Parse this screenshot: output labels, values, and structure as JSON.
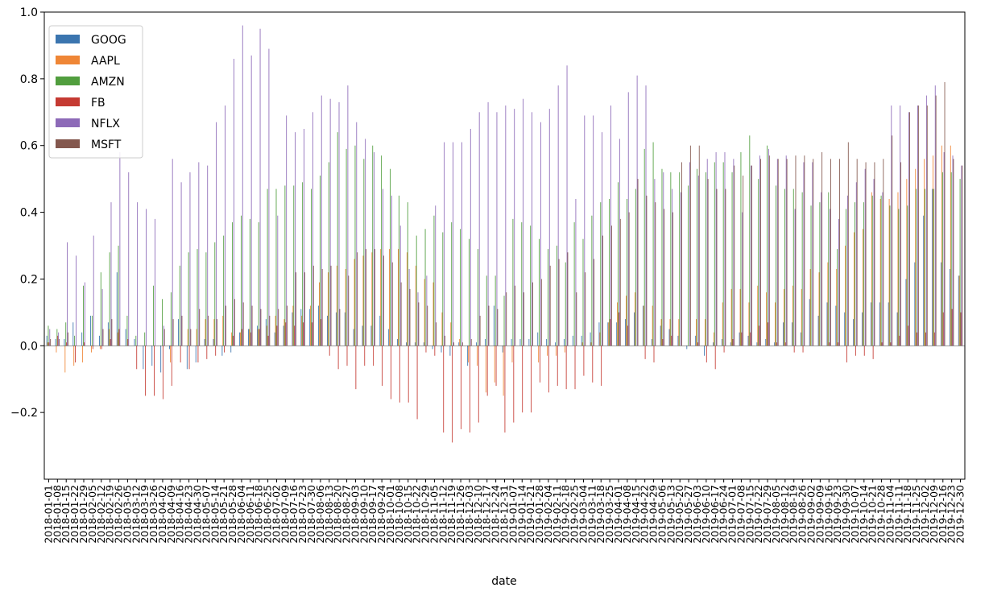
{
  "chart_data": {
    "type": "bar",
    "xlabel": "date",
    "ylabel": "",
    "title": "",
    "ylim": [
      -0.4,
      1.0
    ],
    "yticks": [
      -0.2,
      0.0,
      0.2,
      0.4,
      0.6,
      0.8,
      1.0
    ],
    "ytick_labels": [
      "−0.2",
      "0.0",
      "0.2",
      "0.4",
      "0.6",
      "0.8",
      "1.0"
    ],
    "grid": false,
    "legend_position": "top-left",
    "colors": [
      "#3b75af",
      "#ef8636",
      "#519e3e",
      "#c53a32",
      "#8d6ab8",
      "#84584e"
    ],
    "categories": [
      "2018-01-01",
      "2018-01-08",
      "2018-01-15",
      "2018-01-22",
      "2018-01-29",
      "2018-02-05",
      "2018-02-12",
      "2018-02-19",
      "2018-02-26",
      "2018-03-05",
      "2018-03-12",
      "2018-03-19",
      "2018-03-26",
      "2018-04-02",
      "2018-04-09",
      "2018-04-16",
      "2018-04-23",
      "2018-04-30",
      "2018-05-07",
      "2018-05-14",
      "2018-05-21",
      "2018-05-28",
      "2018-06-04",
      "2018-06-11",
      "2018-06-18",
      "2018-06-25",
      "2018-07-02",
      "2018-07-09",
      "2018-07-16",
      "2018-07-23",
      "2018-07-30",
      "2018-08-06",
      "2018-08-13",
      "2018-08-20",
      "2018-08-27",
      "2018-09-03",
      "2018-09-10",
      "2018-09-17",
      "2018-09-24",
      "2018-10-01",
      "2018-10-08",
      "2018-10-15",
      "2018-10-22",
      "2018-10-29",
      "2018-11-05",
      "2018-11-12",
      "2018-11-19",
      "2018-11-26",
      "2018-12-03",
      "2018-12-10",
      "2018-12-17",
      "2018-12-24",
      "2018-12-31",
      "2019-01-07",
      "2019-01-14",
      "2019-01-21",
      "2019-01-28",
      "2019-02-04",
      "2019-02-11",
      "2019-02-18",
      "2019-02-25",
      "2019-03-04",
      "2019-03-11",
      "2019-03-18",
      "2019-03-25",
      "2019-04-01",
      "2019-04-08",
      "2019-04-15",
      "2019-04-22",
      "2019-04-29",
      "2019-05-06",
      "2019-05-13",
      "2019-05-20",
      "2019-05-27",
      "2019-06-03",
      "2019-06-10",
      "2019-06-17",
      "2019-06-24",
      "2019-07-01",
      "2019-07-08",
      "2019-07-15",
      "2019-07-22",
      "2019-07-29",
      "2019-08-05",
      "2019-08-12",
      "2019-08-19",
      "2019-08-26",
      "2019-09-02",
      "2019-09-09",
      "2019-09-16",
      "2019-09-23",
      "2019-09-30",
      "2019-10-07",
      "2019-10-14",
      "2019-10-21",
      "2019-10-28",
      "2019-11-04",
      "2019-11-11",
      "2019-11-18",
      "2019-11-25",
      "2019-12-02",
      "2019-12-09",
      "2019-12-16",
      "2019-12-23",
      "2019-12-30"
    ],
    "xtick_labels": [
      "2018-01-01",
      "2018-01-08",
      "2018-01-15",
      "2018-01-22",
      "2018-01-29",
      "2018-02-05",
      "2018-02-12",
      "2018-02-19",
      "2018-02-26",
      "2018-03-05",
      "2018-03-12",
      "2018-03-19",
      "2018-03-26",
      "2018-04-02",
      "2018-04-09",
      "2018-04-16",
      "2018-04-23",
      "2018-04-30",
      "2018-05-07",
      "2018-05-14",
      "2018-05-21",
      "2018-05-28",
      "2018-06-04",
      "2018-06-11",
      "2018-06-18",
      "2018-06-25",
      "2018-07-02",
      "2018-07-09",
      "2018-07-16",
      "2018-07-23",
      "2018-07-30",
      "2018-08-06",
      "2018-08-13",
      "2018-08-20",
      "2018-08-27",
      "2018-09-03",
      "2018-09-10",
      "2018-09-17",
      "2018-09-24",
      "2018-10-01",
      "2018-10-08",
      "2018-10-15",
      "2018-10-22",
      "2018-10-29",
      "2018-11-05",
      "2018-11-12",
      "2018-11-19",
      "2018-11-26",
      "2018-12-03",
      "2018-12-10",
      "2018-12-17",
      "2018-12-24",
      "2018-12-31",
      "2019-01-07",
      "2019-01-14",
      "2019-01-21",
      "2019-01-28",
      "2019-02-04",
      "2019-02-11",
      "2019-02-18",
      "2019-02-25",
      "2019-03-04",
      "2019-03-11",
      "2019-03-18",
      "2019-03-25",
      "2019-04-01",
      "2019-04-08",
      "2019-04-15",
      "2019-04-22",
      "2019-04-29",
      "2019-05-06",
      "2019-05-13",
      "2019-05-20",
      "2019-05-27",
      "2019-06-03",
      "2019-06-10",
      "2019-06-17",
      "2019-06-24",
      "2019-07-01",
      "2019-07-08",
      "2019-07-15",
      "2019-07-22",
      "2019-07-29",
      "2019-08-05",
      "2019-08-12",
      "2019-08-19",
      "2019-08-26",
      "2019-09-02",
      "2019-09-09",
      "2019-09-16",
      "2019-09-23",
      "2019-09-30",
      "2019-10-07",
      "2019-10-14",
      "2019-10-21",
      "2019-10-28",
      "2019-11-04",
      "2019-11-11",
      "2019-11-18",
      "2019-11-25",
      "2019-12-02",
      "2019-12-09",
      "2019-12-16",
      "2019-12-23",
      "2019-12-30"
    ],
    "series": [
      {
        "name": "GOOG",
        "values": [
          0.03,
          0.02,
          0.02,
          0.07,
          0.04,
          0.09,
          0.03,
          0.07,
          0.22,
          0.05,
          0.02,
          -0.07,
          -0.06,
          -0.08,
          -0.01,
          0.08,
          -0.07,
          -0.05,
          0.02,
          0.02,
          -0.03,
          -0.02,
          0.04,
          0.05,
          0.06,
          0.08,
          0.04,
          0.06,
          0.1,
          0.11,
          0.11,
          0.12,
          0.09,
          0.1,
          0.1,
          0.05,
          0.06,
          0.06,
          0.09,
          0.05,
          0.02,
          0.01,
          0.01,
          0.01,
          -0.01,
          -0.02,
          -0.03,
          0.01,
          -0.06,
          0.01,
          0.02,
          0.12,
          -0.02,
          0.02,
          0.02,
          0.02,
          0.04,
          0.02,
          0.01,
          0.02,
          0.03,
          0.03,
          0.04,
          0.07,
          0.07,
          0.07,
          0.08,
          0.1,
          0.12,
          0.02,
          0.06,
          0.05,
          0.03,
          -0.01,
          0.03,
          -0.03,
          0.01,
          0.02,
          0.01,
          0.04,
          0.03,
          0.01,
          0.02,
          0.01,
          0.07,
          0.07,
          0.04,
          0.14,
          0.09,
          0.13,
          0.12,
          0.1,
          0.08,
          0.1,
          0.13,
          0.13,
          0.13,
          0.1,
          0.2,
          0.25,
          0.39,
          0.47,
          0.25,
          0.23,
          0.21
        ]
      },
      {
        "name": "AAPL",
        "values": [
          0.01,
          -0.02,
          -0.08,
          -0.06,
          -0.05,
          -0.02,
          -0.01,
          0.05,
          0.04,
          0.0,
          0.0,
          0.0,
          0.0,
          0.0,
          -0.05,
          0.0,
          0.05,
          0.05,
          0.08,
          0.08,
          0.09,
          0.04,
          0.04,
          0.05,
          0.05,
          0.06,
          0.09,
          0.08,
          0.12,
          0.09,
          0.12,
          0.19,
          0.22,
          0.24,
          0.23,
          0.26,
          0.27,
          0.28,
          0.29,
          0.29,
          0.29,
          0.28,
          0.24,
          0.2,
          0.19,
          0.1,
          0.07,
          0.02,
          -0.05,
          -0.06,
          -0.14,
          -0.11,
          -0.15,
          -0.05,
          0.0,
          0.0,
          -0.05,
          -0.03,
          -0.03,
          -0.02,
          0.0,
          0.01,
          0.01,
          0.04,
          0.07,
          0.13,
          0.15,
          0.16,
          0.12,
          0.12,
          0.08,
          0.08,
          0.08,
          0.0,
          0.08,
          0.08,
          0.04,
          0.13,
          0.17,
          0.17,
          0.13,
          0.18,
          0.16,
          0.13,
          0.17,
          0.18,
          0.17,
          0.23,
          0.22,
          0.25,
          0.23,
          0.3,
          0.34,
          0.35,
          0.46,
          0.44,
          0.44,
          0.46,
          0.5,
          0.53,
          0.56,
          0.57,
          0.6,
          0.6,
          0.21
        ]
      },
      {
        "name": "AMZN",
        "values": [
          0.06,
          0.05,
          0.07,
          0.03,
          0.18,
          0.09,
          0.22,
          0.28,
          0.3,
          0.09,
          0.03,
          0.04,
          0.18,
          0.14,
          0.16,
          0.24,
          0.28,
          0.29,
          0.28,
          0.31,
          0.33,
          0.37,
          0.39,
          0.38,
          0.37,
          0.47,
          0.47,
          0.48,
          0.48,
          0.49,
          0.47,
          0.51,
          0.55,
          0.64,
          0.59,
          0.6,
          0.56,
          0.6,
          0.57,
          0.53,
          0.45,
          0.43,
          0.33,
          0.35,
          0.39,
          0.34,
          0.37,
          0.35,
          0.32,
          0.29,
          0.21,
          0.21,
          0.15,
          0.38,
          0.37,
          0.36,
          0.32,
          0.29,
          0.3,
          0.25,
          0.37,
          0.32,
          0.39,
          0.43,
          0.44,
          0.49,
          0.44,
          0.47,
          0.59,
          0.61,
          0.53,
          0.52,
          0.52,
          0.48,
          0.53,
          0.52,
          0.55,
          0.55,
          0.52,
          0.58,
          0.63,
          0.5,
          0.6,
          0.48,
          0.47,
          0.47,
          0.46,
          0.42,
          0.43,
          0.46,
          0.29,
          0.41,
          0.43,
          0.43,
          0.45,
          0.45,
          0.42,
          0.41,
          0.42,
          0.47,
          0.47,
          0.47,
          0.52,
          0.52,
          0.5
        ]
      },
      {
        "name": "FB",
        "values": [
          0.01,
          0.03,
          0.01,
          -0.05,
          0.01,
          -0.01,
          -0.01,
          0.02,
          0.05,
          0.02,
          -0.07,
          -0.15,
          -0.15,
          -0.16,
          -0.12,
          -0.05,
          -0.07,
          -0.05,
          -0.04,
          -0.03,
          -0.02,
          0.03,
          0.05,
          0.04,
          0.05,
          0.03,
          0.06,
          0.07,
          0.06,
          0.07,
          0.07,
          0.08,
          -0.03,
          -0.07,
          -0.06,
          -0.13,
          -0.06,
          -0.06,
          -0.12,
          -0.16,
          -0.17,
          -0.17,
          -0.22,
          -0.02,
          -0.03,
          -0.26,
          -0.29,
          -0.25,
          -0.26,
          -0.23,
          -0.15,
          -0.12,
          -0.26,
          -0.23,
          -0.2,
          -0.2,
          -0.11,
          -0.14,
          -0.12,
          -0.13,
          -0.13,
          -0.09,
          -0.11,
          -0.12,
          0.08,
          0.1,
          0.06,
          0.0,
          -0.04,
          -0.05,
          0.02,
          0.03,
          0.0,
          0.0,
          0.01,
          -0.05,
          -0.07,
          -0.02,
          0.02,
          0.04,
          0.04,
          0.06,
          0.07,
          0.01,
          0.01,
          -0.02,
          -0.02,
          0.0,
          0.0,
          0.01,
          0.01,
          -0.05,
          -0.03,
          -0.03,
          -0.04,
          0.01,
          0.01,
          0.03,
          0.06,
          0.04,
          0.04,
          0.04,
          0.1,
          0.11,
          0.1
        ]
      },
      {
        "name": "NFLX",
        "values": [
          0.05,
          0.04,
          0.31,
          0.27,
          0.19,
          0.33,
          0.17,
          0.43,
          0.58,
          0.52,
          0.43,
          0.41,
          0.38,
          0.06,
          0.56,
          0.49,
          0.52,
          0.55,
          0.54,
          0.67,
          0.72,
          0.86,
          0.96,
          0.87,
          0.95,
          0.89,
          0.39,
          0.69,
          0.64,
          0.65,
          0.7,
          0.75,
          0.74,
          0.73,
          0.78,
          0.67,
          0.62,
          0.58,
          0.47,
          0.45,
          0.36,
          0.23,
          0.16,
          0.21,
          0.42,
          0.61,
          0.61,
          0.61,
          0.65,
          0.7,
          0.73,
          0.7,
          0.72,
          0.71,
          0.74,
          0.7,
          0.67,
          0.71,
          0.78,
          0.84,
          0.44,
          0.69,
          0.69,
          0.64,
          0.72,
          0.62,
          0.76,
          0.81,
          0.78,
          0.5,
          0.52,
          0.47,
          0.46,
          0.55,
          0.51,
          0.56,
          0.58,
          0.58,
          0.56,
          0.4,
          0.54,
          0.57,
          0.59,
          0.56,
          0.57,
          0.41,
          0.55,
          0.55,
          0.46,
          0.41,
          0.38,
          0.45,
          0.49,
          0.53,
          0.5,
          0.46,
          0.72,
          0.72,
          0.7,
          0.72,
          0.75,
          0.78,
          0.58,
          0.57,
          0.54
        ]
      },
      {
        "name": "MSFT",
        "values": [
          0.02,
          0.02,
          0.04,
          0.0,
          0.0,
          0.0,
          0.05,
          0.08,
          0.0,
          0.0,
          0.0,
          0.0,
          0.0,
          0.05,
          0.08,
          0.09,
          0.05,
          0.11,
          0.09,
          0.08,
          0.12,
          0.14,
          0.13,
          0.12,
          0.11,
          0.09,
          0.11,
          0.12,
          0.22,
          0.22,
          0.24,
          0.23,
          0.24,
          0.11,
          0.21,
          0.28,
          0.29,
          0.29,
          0.27,
          0.25,
          0.19,
          0.17,
          0.13,
          0.12,
          0.07,
          0.03,
          0.01,
          0.01,
          0.02,
          0.09,
          0.12,
          0.11,
          0.16,
          0.18,
          0.16,
          0.19,
          0.2,
          0.24,
          0.26,
          0.28,
          0.16,
          0.22,
          0.26,
          0.33,
          0.36,
          0.38,
          0.4,
          0.5,
          0.45,
          0.43,
          0.41,
          0.4,
          0.55,
          0.6,
          0.6,
          0.5,
          0.47,
          0.47,
          0.54,
          0.51,
          0.54,
          0.56,
          0.57,
          0.56,
          0.56,
          0.57,
          0.57,
          0.56,
          0.58,
          0.56,
          0.56,
          0.61,
          0.56,
          0.55,
          0.55,
          0.56,
          0.63,
          0.55,
          0.7,
          0.72,
          0.72,
          0.75,
          0.79,
          0.56,
          0.54
        ]
      }
    ]
  }
}
